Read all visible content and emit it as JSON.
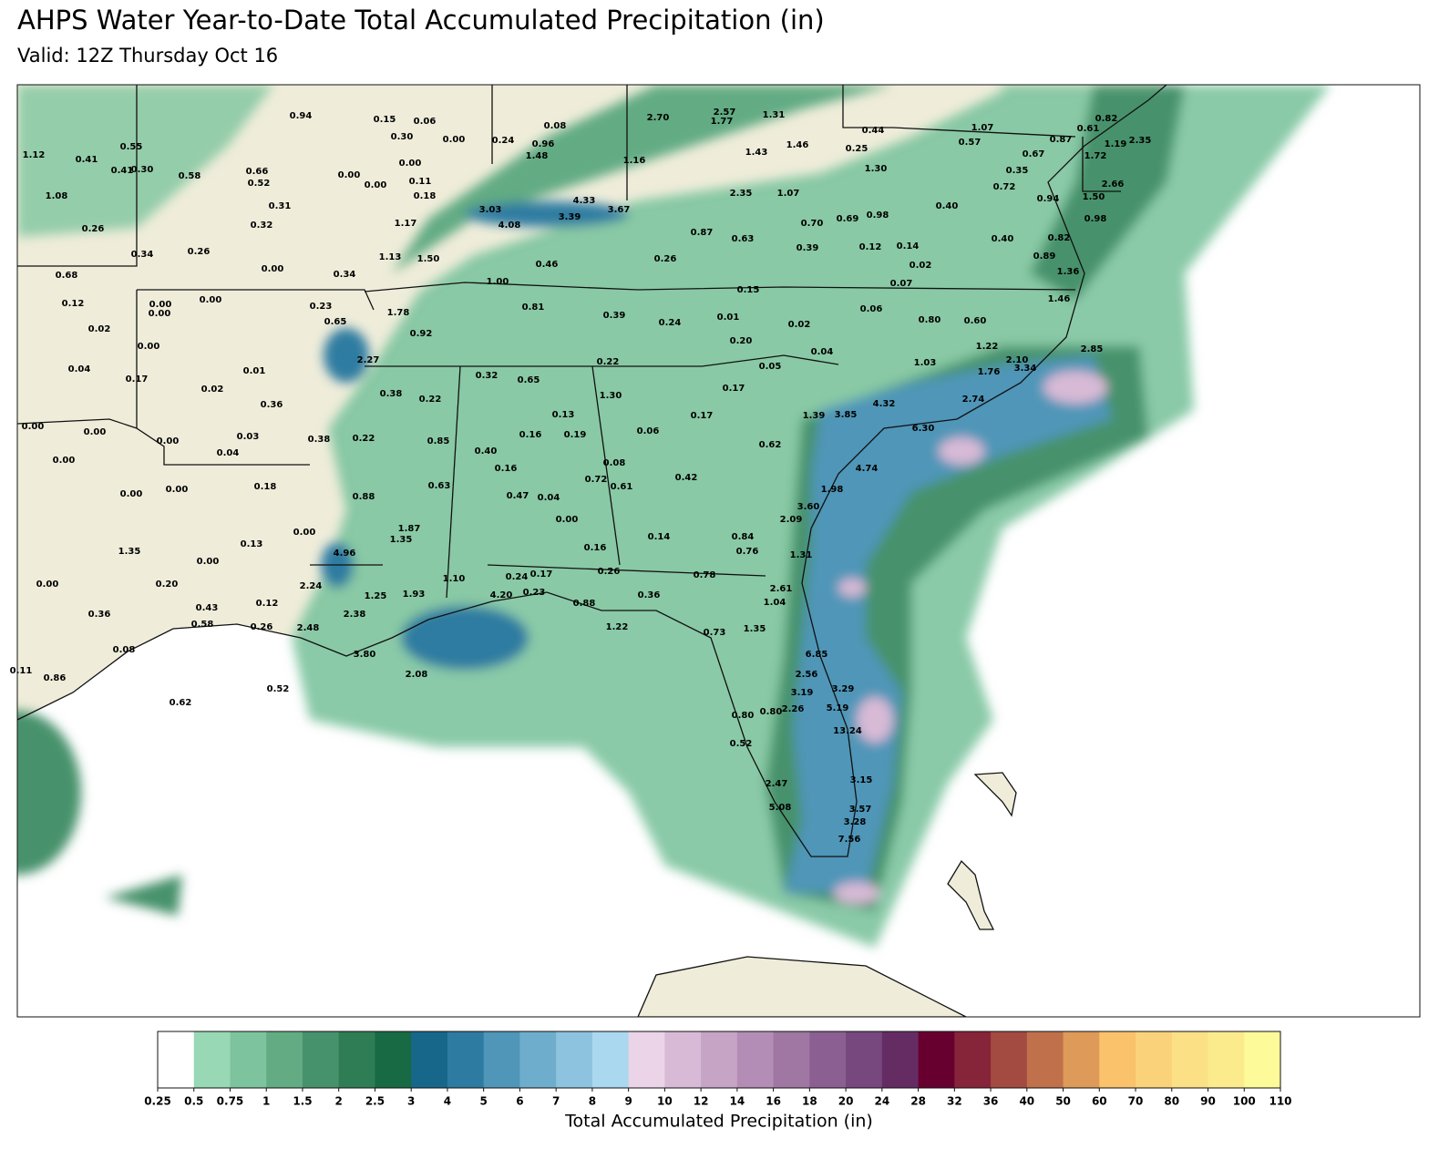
{
  "title": "AHPS Water Year-to-Date Total Accumulated Precipitation (in)",
  "subtitle": "Valid: 12Z Thursday Oct 16",
  "stations": [
    "0.94",
    "0.15",
    "0.06",
    "0.30",
    "0.00",
    "0.08",
    "0.24",
    "0.96",
    "1.48",
    "2.70",
    "2.57",
    "1.77",
    "1.31",
    "1.12",
    "0.55",
    "0.41",
    "0.41",
    "0.30",
    "0.58",
    "0.66",
    "0.52",
    "0.00",
    "0.00",
    "0.00",
    "0.11",
    "0.18",
    "1.08",
    "0.31",
    "0.32",
    "1.17",
    "3.03",
    "4.33",
    "3.67",
    "3.39",
    "4.08",
    "1.16",
    "1.43",
    "1.46",
    "0.44",
    "0.25",
    "1.30",
    "2.35",
    "1.07",
    "1.07",
    "0.57",
    "0.67",
    "0.87",
    "0.61",
    "0.82",
    "1.19",
    "2.35",
    "1.72",
    "0.35",
    "0.72",
    "0.94",
    "1.50",
    "2.66",
    "0.98",
    "0.40",
    "0.70",
    "0.69",
    "0.98",
    "0.87",
    "0.63",
    "0.39",
    "0.12",
    "0.14",
    "0.40",
    "0.82",
    "0.89",
    "0.02",
    "1.36",
    "1.46",
    "0.26",
    "0.34",
    "0.26",
    "0.00",
    "0.34",
    "1.13",
    "1.50",
    "0.46",
    "0.26",
    "0.68",
    "0.12",
    "0.00",
    "0.00",
    "0.00",
    "0.23",
    "0.65",
    "1.78",
    "1.00",
    "0.81",
    "0.39",
    "0.15",
    "0.07",
    "0.06",
    "0.80",
    "0.60",
    "0.02",
    "0.00",
    "0.92",
    "0.24",
    "0.01",
    "0.02",
    "0.20",
    "0.04",
    "1.22",
    "2.10",
    "3.34",
    "2.85",
    "1.03",
    "1.76",
    "0.04",
    "0.17",
    "0.01",
    "0.02",
    "0.36",
    "2.27",
    "0.38",
    "0.22",
    "0.32",
    "0.65",
    "0.22",
    "0.05",
    "0.17",
    "1.30",
    "4.32",
    "2.74",
    "6.30",
    "1.39",
    "3.85",
    "0.00",
    "0.00",
    "0.00",
    "0.03",
    "0.04",
    "0.38",
    "0.22",
    "0.85",
    "0.40",
    "0.16",
    "0.19",
    "0.13",
    "0.06",
    "0.17",
    "0.62",
    "4.74",
    "0.00",
    "0.16",
    "0.08",
    "0.42",
    "0.72",
    "0.61",
    "1.98",
    "0.00",
    "0.00",
    "0.18",
    "0.63",
    "0.88",
    "0.47",
    "0.04",
    "3.60",
    "2.09",
    "0.00",
    "0.00",
    "1.87",
    "1.35",
    "0.13",
    "0.00",
    "1.35",
    "4.96",
    "0.14",
    "0.84",
    "0.76",
    "0.16",
    "1.31",
    "0.00",
    "0.20",
    "2.24",
    "1.10",
    "0.24",
    "0.17",
    "0.26",
    "0.78",
    "2.61",
    "1.25",
    "1.93",
    "4.20",
    "0.23",
    "0.88",
    "0.36",
    "1.04",
    "0.43",
    "0.12",
    "0.36",
    "2.38",
    "0.58",
    "0.26",
    "2.48",
    "1.22",
    "0.73",
    "1.35",
    "0.08",
    "3.80",
    "6.85",
    "0.11",
    "0.86",
    "2.08",
    "2.56",
    "3.29",
    "0.52",
    "0.62",
    "3.19",
    "5.19",
    "0.80",
    "2.26",
    "0.80",
    "1.35",
    "13.24",
    "0.52",
    "3.15",
    "2.47",
    "5.08",
    "3.57",
    "3.28",
    "7.56"
  ],
  "legend": {
    "title": "Total Accumulated Precipitation (in)",
    "levels": [
      0.25,
      0.5,
      0.75,
      1,
      1.5,
      2,
      2.5,
      3,
      4,
      5,
      6,
      7,
      8,
      9,
      10,
      12,
      14,
      16,
      18,
      20,
      24,
      28,
      32,
      36,
      40,
      50,
      60,
      70,
      80,
      90,
      100,
      110
    ],
    "colors": [
      "#ffffff",
      "#98d8b5",
      "#7dc49e",
      "#62ab83",
      "#46926c",
      "#2e7d55",
      "#176a44",
      "#17678a",
      "#2e7ba1",
      "#4f96b8",
      "#6fadcc",
      "#8dc3df",
      "#aad8ef",
      "#ebd3e8",
      "#d8bad6",
      "#c6a4c6",
      "#b38db5",
      "#a076a3",
      "#8b5f91",
      "#76487e",
      "#652c64",
      "#68002f",
      "#86243a",
      "#a34a41",
      "#c0714b",
      "#dd9a58",
      "#f9c26b",
      "#fad27a",
      "#fbe086",
      "#fceb8d",
      "#fdfa9a"
    ]
  }
}
